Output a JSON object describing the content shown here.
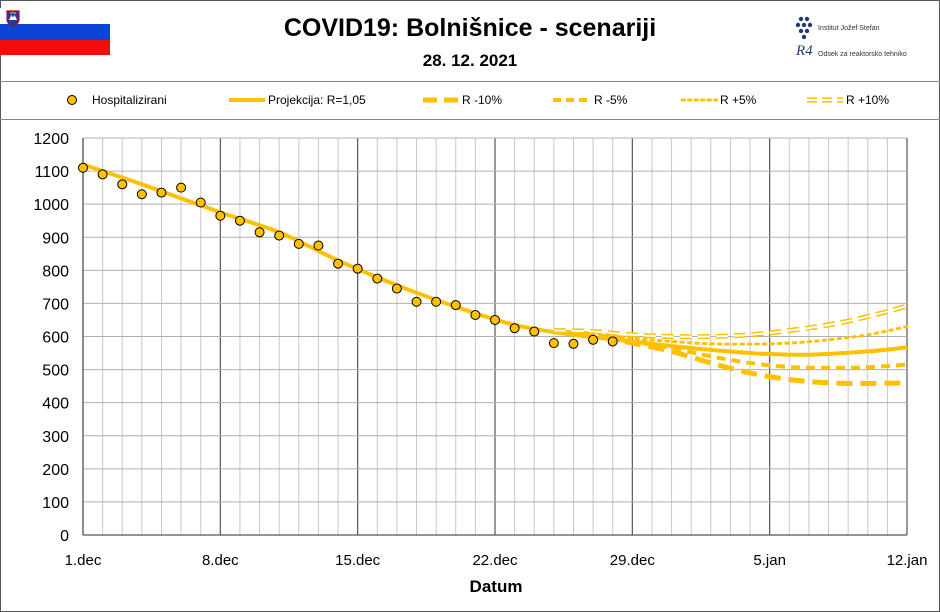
{
  "header": {
    "title": "COVID19: Bolnišnice - scenariji",
    "date": "28. 12. 2021",
    "logo_line1": "Institut Jožef Stefan",
    "logo_line2": "Odsek za reaktorsko tehniko",
    "logo_mark": "R4"
  },
  "colors": {
    "series": "#ffc000",
    "marker_border": "#000000",
    "flag_white": "#ffffff",
    "flag_blue": "#0a44d8",
    "flag_red": "#f20d0d"
  },
  "chart_data": {
    "type": "line",
    "title": "COVID19: Bolnišnice - scenariji",
    "xlabel": "Datum",
    "ylabel": "",
    "x_domain_days": [
      0,
      42
    ],
    "ylim": [
      0,
      1200
    ],
    "yticks": [
      0,
      100,
      200,
      300,
      400,
      500,
      600,
      700,
      800,
      900,
      1000,
      1100,
      1200
    ],
    "xticks": [
      {
        "day": 0,
        "label": "1.dec"
      },
      {
        "day": 7,
        "label": "8.dec"
      },
      {
        "day": 14,
        "label": "15.dec"
      },
      {
        "day": 21,
        "label": "22.dec"
      },
      {
        "day": 28,
        "label": "29.dec"
      },
      {
        "day": 35,
        "label": "5.jan"
      },
      {
        "day": 42,
        "label": "12.jan"
      }
    ],
    "grid": true,
    "legend_position": "top",
    "series": [
      {
        "name": "Hospitalizirani",
        "style": "marker",
        "points": [
          [
            0,
            1110
          ],
          [
            1,
            1090
          ],
          [
            2,
            1060
          ],
          [
            3,
            1030
          ],
          [
            4,
            1035
          ],
          [
            5,
            1050
          ],
          [
            6,
            1005
          ],
          [
            7,
            965
          ],
          [
            8,
            950
          ],
          [
            9,
            915
          ],
          [
            10,
            905
          ],
          [
            11,
            880
          ],
          [
            12,
            875
          ],
          [
            13,
            820
          ],
          [
            14,
            805
          ],
          [
            15,
            775
          ],
          [
            16,
            745
          ],
          [
            17,
            705
          ],
          [
            18,
            705
          ],
          [
            19,
            695
          ],
          [
            20,
            665
          ],
          [
            21,
            650
          ],
          [
            22,
            625
          ],
          [
            23,
            615
          ],
          [
            24,
            580
          ],
          [
            25,
            578
          ],
          [
            26,
            590
          ],
          [
            27,
            585
          ]
        ]
      },
      {
        "name": "Projekcija: R=1,05",
        "style": "solid",
        "points": [
          [
            0,
            1120
          ],
          [
            3,
            1060
          ],
          [
            7,
            975
          ],
          [
            10,
            915
          ],
          [
            13,
            830
          ],
          [
            16,
            755
          ],
          [
            19,
            690
          ],
          [
            22,
            635
          ],
          [
            25,
            605
          ],
          [
            28,
            585
          ],
          [
            31,
            565
          ],
          [
            34,
            550
          ],
          [
            35,
            547
          ],
          [
            37,
            545
          ],
          [
            40,
            555
          ],
          [
            42,
            567
          ]
        ]
      },
      {
        "name": "R -10%",
        "style": "dash-long",
        "points": [
          [
            24,
            615
          ],
          [
            26,
            605
          ],
          [
            28,
            580
          ],
          [
            30,
            555
          ],
          [
            32,
            520
          ],
          [
            34,
            490
          ],
          [
            36,
            470
          ],
          [
            38,
            460
          ],
          [
            40,
            458
          ],
          [
            42,
            460
          ]
        ]
      },
      {
        "name": "R -5%",
        "style": "dash-short",
        "points": [
          [
            24,
            615
          ],
          [
            26,
            605
          ],
          [
            28,
            585
          ],
          [
            30,
            565
          ],
          [
            32,
            540
          ],
          [
            34,
            520
          ],
          [
            36,
            508
          ],
          [
            38,
            505
          ],
          [
            40,
            507
          ],
          [
            42,
            515
          ]
        ]
      },
      {
        "name": "R +5%",
        "style": "dot",
        "points": [
          [
            24,
            615
          ],
          [
            26,
            610
          ],
          [
            28,
            595
          ],
          [
            30,
            585
          ],
          [
            32,
            578
          ],
          [
            34,
            577
          ],
          [
            36,
            580
          ],
          [
            38,
            590
          ],
          [
            40,
            605
          ],
          [
            42,
            630
          ]
        ]
      },
      {
        "name": "R +10%",
        "style": "hollow",
        "points": [
          [
            24,
            618
          ],
          [
            26,
            615
          ],
          [
            28,
            605
          ],
          [
            30,
            600
          ],
          [
            32,
            600
          ],
          [
            34,
            605
          ],
          [
            36,
            618
          ],
          [
            38,
            635
          ],
          [
            40,
            660
          ],
          [
            42,
            692
          ]
        ]
      }
    ]
  }
}
